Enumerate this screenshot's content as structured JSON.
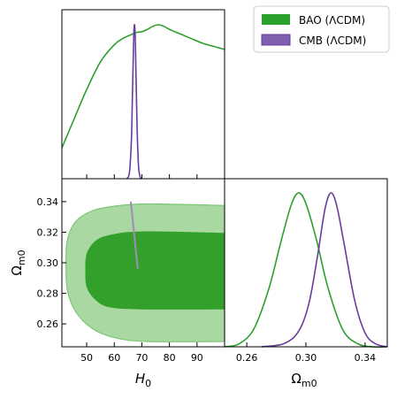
{
  "chart_data": {
    "type": "corner",
    "colors": {
      "bao": "#2ca02c",
      "bao_inner": "#33a02c",
      "bao_outer": "#a9d8a3",
      "bao_outer_edge": "#7cc776",
      "cmb": "#6a3d9a",
      "cmb_fill": "#7f5faf",
      "cmb_track": "#9e8fb5"
    },
    "legend": {
      "entries": [
        {
          "label": "BAO (ΛCDM)",
          "color": "#2ca02c"
        },
        {
          "label": "CMB (ΛCDM)",
          "color": "#7f5faf"
        }
      ],
      "placement": "top-right"
    },
    "axes": {
      "H0": {
        "label": "H",
        "label_sub": "0",
        "range": [
          41,
          100
        ],
        "ticks": [
          50,
          60,
          70,
          80,
          90
        ]
      },
      "Om": {
        "label": "Ω",
        "label_sub": "m0",
        "range": [
          0.245,
          0.355
        ],
        "ticks_y": [
          0.26,
          0.28,
          0.3,
          0.32,
          0.34
        ],
        "ticks_x": [
          0.26,
          0.3,
          0.34
        ]
      }
    },
    "panels": {
      "H0_posterior": {
        "series": [
          {
            "name": "BAO (ΛCDM)",
            "x": [
              41,
              45,
              50,
              55,
              60,
              63,
              66,
              68,
              70,
              72,
              74,
              76,
              78,
              80,
              84,
              88,
              92,
              96,
              100
            ],
            "y": [
              0.2,
              0.37,
              0.58,
              0.76,
              0.87,
              0.91,
              0.935,
              0.95,
              0.955,
              0.97,
              0.99,
              1.0,
              0.99,
              0.97,
              0.94,
              0.91,
              0.88,
              0.86,
              0.84
            ]
          },
          {
            "name": "CMB (ΛCDM)",
            "x": [
              64.5,
              65.5,
              66.2,
              66.6,
              67.0,
              67.3,
              67.6,
              67.9,
              68.3,
              68.8,
              69.4,
              70.0
            ],
            "y": [
              0.0,
              0.04,
              0.25,
              0.55,
              0.88,
              1.0,
              0.92,
              0.65,
              0.32,
              0.08,
              0.01,
              0.0
            ]
          }
        ]
      },
      "Om_posterior": {
        "series": [
          {
            "name": "BAO (ΛCDM)",
            "x": [
              0.245,
              0.255,
              0.265,
              0.275,
              0.283,
              0.29,
              0.295,
              0.3,
              0.307,
              0.315,
              0.325,
              0.335,
              0.345,
              0.355
            ],
            "y": [
              0.0,
              0.02,
              0.12,
              0.38,
              0.68,
              0.92,
              1.0,
              0.93,
              0.7,
              0.38,
              0.11,
              0.02,
              0.0,
              0.0
            ]
          },
          {
            "name": "CMB (ΛCDM)",
            "x": [
              0.27,
              0.285,
              0.295,
              0.302,
              0.308,
              0.313,
              0.317,
              0.321,
              0.326,
              0.333,
              0.34,
              0.347,
              0.355
            ],
            "y": [
              0.0,
              0.02,
              0.1,
              0.28,
              0.6,
              0.9,
              1.0,
              0.91,
              0.66,
              0.3,
              0.09,
              0.02,
              0.0
            ]
          }
        ]
      },
      "joint": {
        "bao_outer_contour": {
          "H0": [
            100,
            72,
            60,
            52,
            46,
            43,
            42.5,
            43,
            46,
            52,
            60,
            72,
            100
          ],
          "Om": [
            0.3375,
            0.3385,
            0.337,
            0.334,
            0.327,
            0.315,
            0.3,
            0.282,
            0.268,
            0.257,
            0.251,
            0.2485,
            0.2485
          ]
        },
        "bao_inner_contour": {
          "H0": [
            100,
            70,
            58,
            53,
            50,
            49.5,
            50,
            53,
            58,
            70,
            100
          ],
          "Om": [
            0.3195,
            0.3205,
            0.318,
            0.314,
            0.306,
            0.295,
            0.284,
            0.276,
            0.271,
            0.2695,
            0.2695
          ]
        },
        "cmb_track": {
          "H0": [
            66.0,
            68.5
          ],
          "Om": [
            0.34,
            0.296
          ]
        }
      }
    }
  }
}
